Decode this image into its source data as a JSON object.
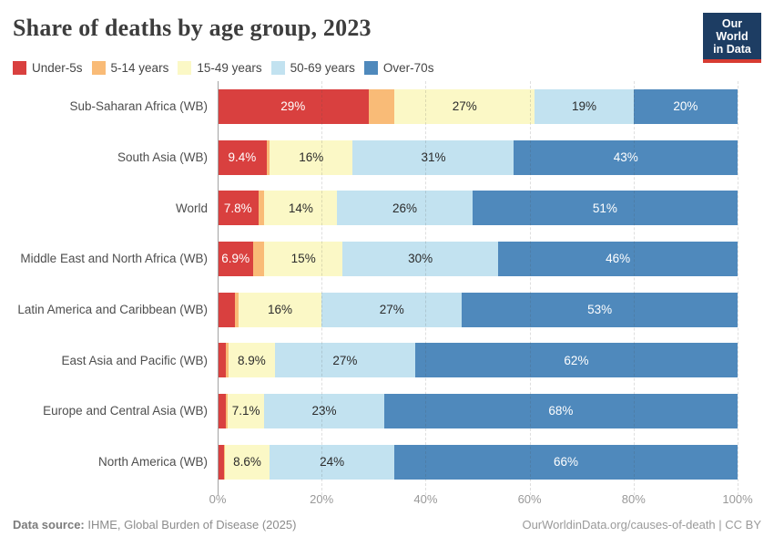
{
  "header": {
    "title": "Share of deaths by age group, 2023",
    "logo_line1": "Our World",
    "logo_line2": "in Data",
    "logo_bg_color": "#1d3d63",
    "logo_accent_color": "#d73b32"
  },
  "chart_data": {
    "type": "bar",
    "stacked": true,
    "orientation": "horizontal",
    "title": "Share of deaths by age group, 2023",
    "unit": "%",
    "xlim": [
      0,
      100
    ],
    "x_ticks": [
      "0%",
      "20%",
      "40%",
      "60%",
      "80%",
      "100%"
    ],
    "grid": "dashed-vertical",
    "legend_position": "top",
    "series": [
      {
        "name": "Under-5s",
        "color": "#d9403f",
        "label_color": "#ffffff"
      },
      {
        "name": "5-14 years",
        "color": "#f9bb77",
        "label_color": "#2b2b2b"
      },
      {
        "name": "15-49 years",
        "color": "#fbf8c6",
        "label_color": "#2b2b2b"
      },
      {
        "name": "50-69 years",
        "color": "#c2e2f0",
        "label_color": "#2b2b2b"
      },
      {
        "name": "Over-70s",
        "color": "#4f89bc",
        "label_color": "#ffffff"
      }
    ],
    "rows": [
      {
        "category": "Sub-Saharan Africa (WB)",
        "values": [
          29,
          5,
          27,
          19,
          20
        ],
        "labels": [
          "29%",
          "",
          "27%",
          "19%",
          "20%"
        ]
      },
      {
        "category": "South Asia (WB)",
        "values": [
          9.4,
          0.6,
          16,
          31,
          43
        ],
        "labels": [
          "9.4%",
          "",
          "16%",
          "31%",
          "43%"
        ]
      },
      {
        "category": "World",
        "values": [
          7.8,
          1.2,
          14,
          26,
          51
        ],
        "labels": [
          "7.8%",
          "",
          "14%",
          "26%",
          "51%"
        ]
      },
      {
        "category": "Middle East and North Africa (WB)",
        "values": [
          6.9,
          2.1,
          15,
          30,
          46
        ],
        "labels": [
          "6.9%",
          "",
          "15%",
          "30%",
          "46%"
        ]
      },
      {
        "category": "Latin America and Caribbean (WB)",
        "values": [
          3.3,
          0.7,
          16,
          27,
          53
        ],
        "labels": [
          "",
          "",
          "16%",
          "27%",
          "53%"
        ]
      },
      {
        "category": "East Asia and Pacific (WB)",
        "values": [
          1.6,
          0.5,
          8.9,
          27,
          62
        ],
        "labels": [
          "",
          "",
          "8.9%",
          "27%",
          "62%"
        ]
      },
      {
        "category": "Europe and Central Asia (WB)",
        "values": [
          1.5,
          0.4,
          7.1,
          23,
          68
        ],
        "labels": [
          "",
          "",
          "7.1%",
          "23%",
          "68%"
        ]
      },
      {
        "category": "North America (WB)",
        "values": [
          1.2,
          0.2,
          8.6,
          24,
          66
        ],
        "labels": [
          "",
          "",
          "8.6%",
          "24%",
          "66%"
        ]
      }
    ]
  },
  "footer": {
    "source_label": "Data source:",
    "source_text": " IHME, Global Burden of Disease (2025)",
    "credit_text": "OurWorldinData.org/causes-of-death | CC BY"
  }
}
